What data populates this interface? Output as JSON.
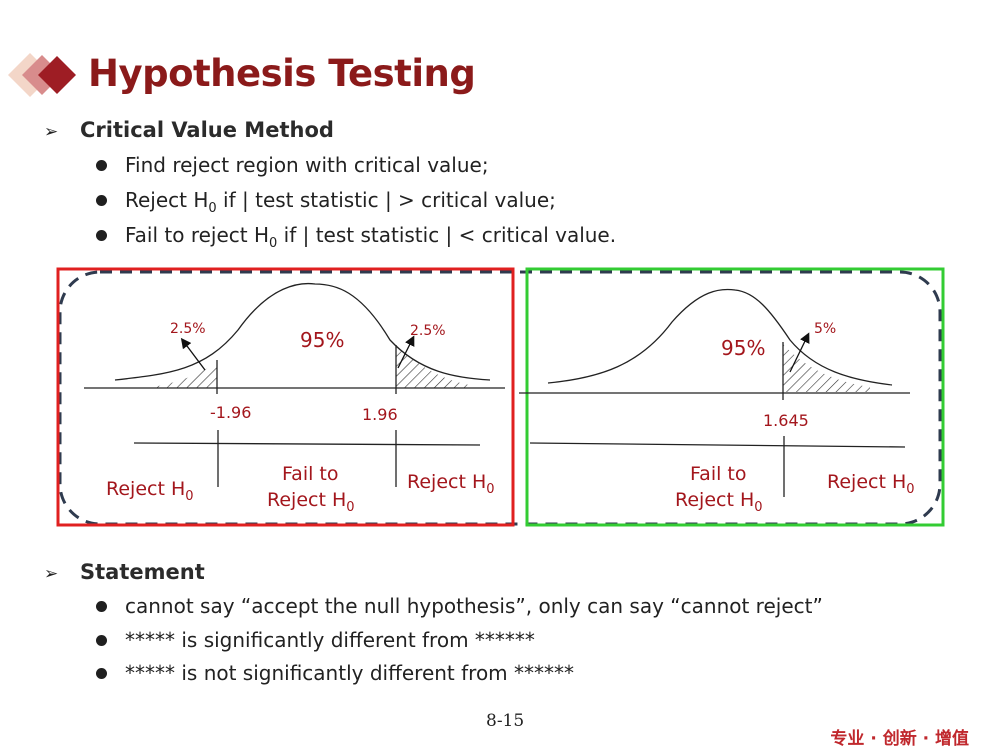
{
  "title": "Hypothesis Testing",
  "section1": {
    "heading": "Critical Value Method",
    "bullets": [
      {
        "pre": "Find reject region with critical value;",
        "sub": "",
        "post": ""
      },
      {
        "pre": "Reject H",
        "sub": "0",
        "post": " if | test statistic | > critical value;"
      },
      {
        "pre": "Fail to reject H",
        "sub": "0",
        "post": " if | test statistic | < critical value."
      }
    ]
  },
  "diagram_left": {
    "tail_left": "2.5%",
    "tail_right": "2.5%",
    "center": "95%",
    "crit_left": "-1.96",
    "crit_right": "1.96",
    "region_left": "Reject H",
    "region_mid_1": "Fail to",
    "region_mid_2": "Reject H",
    "region_right": "Reject H",
    "sub": "0"
  },
  "diagram_right": {
    "tail": "5%",
    "center": "95%",
    "crit": "1.645",
    "region_mid_1": "Fail to",
    "region_mid_2": "Reject H",
    "region_right": "Reject H",
    "sub": "0"
  },
  "colors": {
    "left_frame": "#e02020",
    "right_frame": "#33cc33",
    "label": "#a3161c",
    "title": "#8b1a1a"
  },
  "section2": {
    "heading": "Statement",
    "bullets": [
      "cannot say “accept the null hypothesis”, only can say “cannot reject”",
      "***** is significantly different from ******",
      "***** is not significantly different from ******"
    ]
  },
  "page_number": "8-15",
  "footer_brand": "专业 · 创新 · 增值"
}
